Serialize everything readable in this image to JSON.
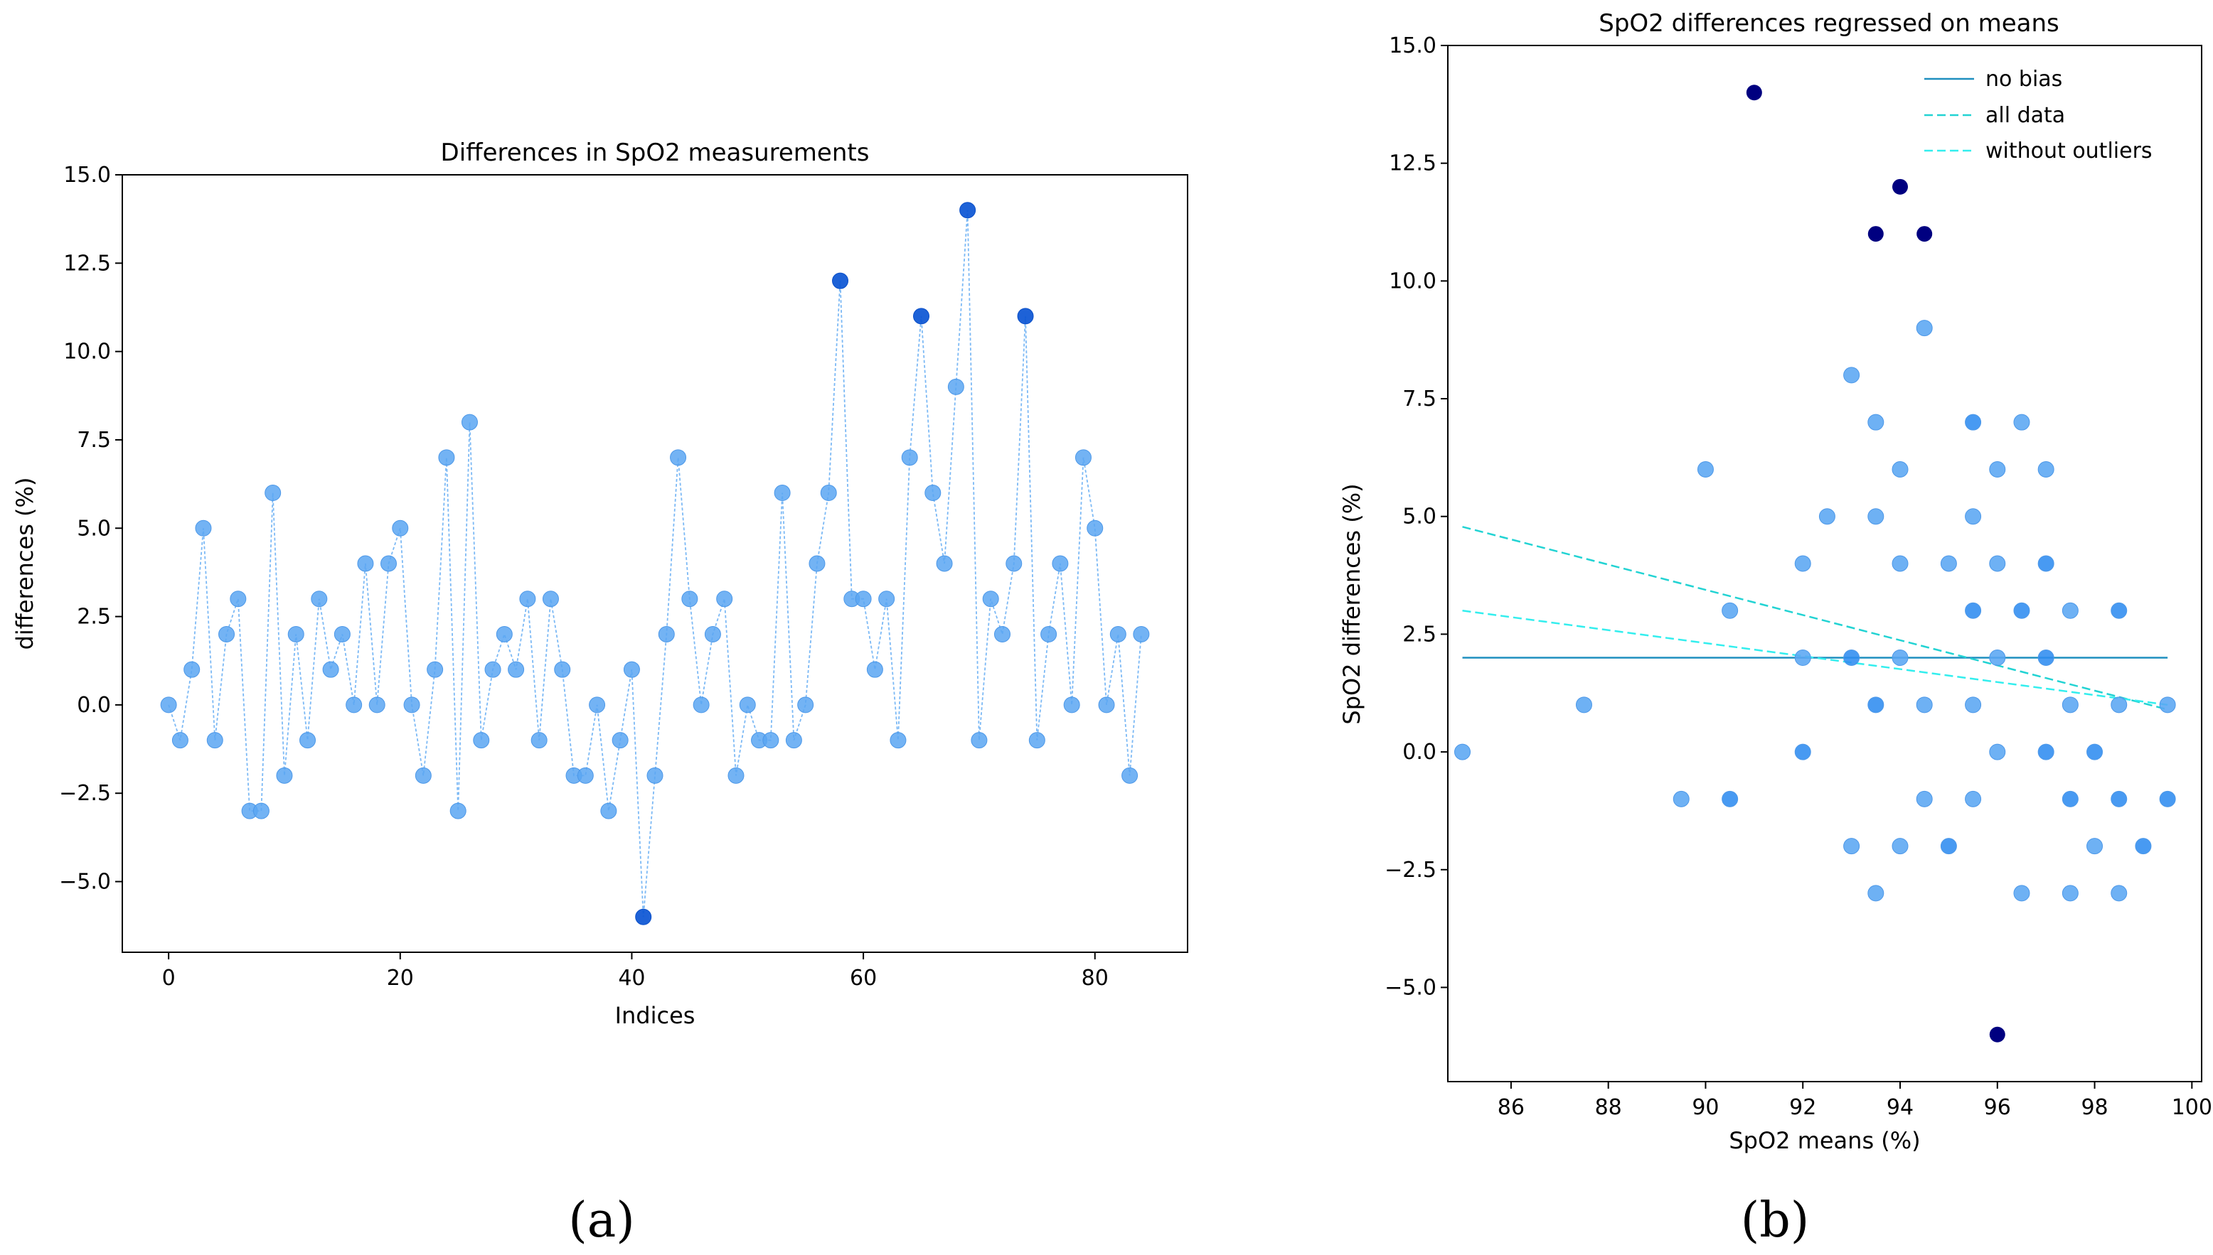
{
  "chart_data": [
    {
      "type": "line",
      "title": "Differences in SpO2 measurements",
      "xlabel": "Indices",
      "ylabel": "differences (%)",
      "xlim": [
        -4,
        88
      ],
      "ylim": [
        -7,
        15
      ],
      "xticks": [
        0,
        20,
        40,
        60,
        80
      ],
      "yticks": [
        -5.0,
        -2.5,
        0.0,
        2.5,
        5.0,
        7.5,
        10.0,
        12.5,
        15.0
      ],
      "ytick_labels": [
        "−5.0",
        "−2.5",
        "0.0",
        "2.5",
        "5.0",
        "7.5",
        "10.0",
        "12.5",
        "15.0"
      ],
      "line_style": "dotted",
      "colors": {
        "point": "#5aa6f2",
        "line": "#7cb9f5",
        "outlier": "#0b55d4"
      },
      "outlier_indices": [
        41,
        58,
        65,
        69,
        74
      ],
      "series": [
        {
          "name": "differences",
          "values": [
            0,
            -1,
            1,
            5,
            -1,
            2,
            3,
            -3,
            -3,
            6,
            -2,
            2,
            -1,
            3,
            1,
            2,
            0,
            4,
            0,
            4,
            5,
            0,
            -2,
            1,
            7,
            -3,
            8,
            -1,
            1,
            2,
            1,
            3,
            -1,
            3,
            1,
            -2,
            -2,
            0,
            -3,
            -1,
            1,
            -6,
            -2,
            2,
            7,
            3,
            0,
            2,
            3,
            -2,
            0,
            -1,
            -1,
            6,
            -1,
            0,
            4,
            6,
            12,
            3,
            3,
            1,
            3,
            -1,
            7,
            11,
            6,
            4,
            9,
            14,
            -1,
            3,
            2,
            4,
            11,
            -1,
            2,
            4,
            0,
            7,
            5,
            0,
            2,
            -2,
            2
          ]
        }
      ]
    },
    {
      "type": "scatter",
      "title": "SpO2 differences regressed on means",
      "xlabel": "SpO2 means (%)",
      "ylabel": "SpO2 differences (%)",
      "xlim": [
        84.7,
        100.2
      ],
      "ylim": [
        -7,
        15
      ],
      "xticks": [
        86,
        88,
        90,
        92,
        94,
        96,
        98,
        100
      ],
      "yticks": [
        -5.0,
        -2.5,
        0.0,
        2.5,
        5.0,
        7.5,
        10.0,
        12.5,
        15.0
      ],
      "ytick_labels": [
        "−5.0",
        "−2.5",
        "0.0",
        "2.5",
        "5.0",
        "7.5",
        "10.0",
        "12.5",
        "15.0"
      ],
      "colors": {
        "point": "#5aa6f2",
        "dense": "#2f8cf0",
        "outlier": "#000080",
        "no_bias": "#1f8fbf",
        "all_data": "#22d3d3",
        "without_outliers": "#33eeee"
      },
      "points": [
        {
          "x": 85,
          "y": 0
        },
        {
          "x": 87.5,
          "y": 1
        },
        {
          "x": 89.5,
          "y": -1
        },
        {
          "x": 90,
          "y": 6
        },
        {
          "x": 90.5,
          "y": 3
        },
        {
          "x": 90.5,
          "y": -1,
          "dense": true
        },
        {
          "x": 92,
          "y": 4
        },
        {
          "x": 92,
          "y": 2
        },
        {
          "x": 92,
          "y": 0,
          "dense": true
        },
        {
          "x": 92.5,
          "y": 5
        },
        {
          "x": 93,
          "y": 8
        },
        {
          "x": 93,
          "y": 2,
          "dense": true
        },
        {
          "x": 93,
          "y": -2
        },
        {
          "x": 93.5,
          "y": 7
        },
        {
          "x": 93.5,
          "y": 5
        },
        {
          "x": 93.5,
          "y": 1,
          "dense": true
        },
        {
          "x": 93.5,
          "y": -3
        },
        {
          "x": 94,
          "y": 6
        },
        {
          "x": 94,
          "y": 4
        },
        {
          "x": 94,
          "y": 2
        },
        {
          "x": 94,
          "y": -2
        },
        {
          "x": 94.5,
          "y": 9
        },
        {
          "x": 94.5,
          "y": 1
        },
        {
          "x": 94.5,
          "y": -1
        },
        {
          "x": 95,
          "y": 4
        },
        {
          "x": 95,
          "y": -2,
          "dense": true
        },
        {
          "x": 95.5,
          "y": 7,
          "dense": true
        },
        {
          "x": 95.5,
          "y": 5
        },
        {
          "x": 95.5,
          "y": 3,
          "dense": true
        },
        {
          "x": 95.5,
          "y": 1
        },
        {
          "x": 95.5,
          "y": -1
        },
        {
          "x": 96,
          "y": 6
        },
        {
          "x": 96,
          "y": 4
        },
        {
          "x": 96,
          "y": 2
        },
        {
          "x": 96,
          "y": 0
        },
        {
          "x": 96.5,
          "y": 7
        },
        {
          "x": 96.5,
          "y": 3,
          "dense": true
        },
        {
          "x": 96.5,
          "y": -3
        },
        {
          "x": 97,
          "y": 6
        },
        {
          "x": 97,
          "y": 4,
          "dense": true
        },
        {
          "x": 97,
          "y": 2,
          "dense": true
        },
        {
          "x": 97,
          "y": 0,
          "dense": true
        },
        {
          "x": 97.5,
          "y": 3
        },
        {
          "x": 97.5,
          "y": 1
        },
        {
          "x": 97.5,
          "y": -1,
          "dense": true
        },
        {
          "x": 97.5,
          "y": -3
        },
        {
          "x": 98,
          "y": 0,
          "dense": true
        },
        {
          "x": 98,
          "y": -2
        },
        {
          "x": 98.5,
          "y": 3,
          "dense": true
        },
        {
          "x": 98.5,
          "y": 1
        },
        {
          "x": 98.5,
          "y": -1,
          "dense": true
        },
        {
          "x": 98.5,
          "y": -3
        },
        {
          "x": 99,
          "y": -2,
          "dense": true
        },
        {
          "x": 99.5,
          "y": 1
        },
        {
          "x": 99.5,
          "y": -1,
          "dense": true
        }
      ],
      "outliers": [
        {
          "x": 91,
          "y": 14
        },
        {
          "x": 94,
          "y": 12
        },
        {
          "x": 93.5,
          "y": 11
        },
        {
          "x": 94.5,
          "y": 11
        },
        {
          "x": 96,
          "y": -6
        }
      ],
      "lines": [
        {
          "name": "no bias",
          "style": "solid",
          "x": [
            85,
            99.5
          ],
          "y": [
            2.0,
            2.0
          ]
        },
        {
          "name": "all data",
          "style": "dashed",
          "x": [
            85,
            99.5
          ],
          "y": [
            4.78,
            0.9
          ]
        },
        {
          "name": "without outliers",
          "style": "dashed",
          "x": [
            85,
            99.5
          ],
          "y": [
            3.0,
            1.0
          ]
        }
      ],
      "legend": {
        "position": "top-right",
        "entries": [
          "no bias",
          "all data",
          "without outliers"
        ]
      }
    }
  ],
  "captions": {
    "a": "(a)",
    "b": "(b)"
  }
}
